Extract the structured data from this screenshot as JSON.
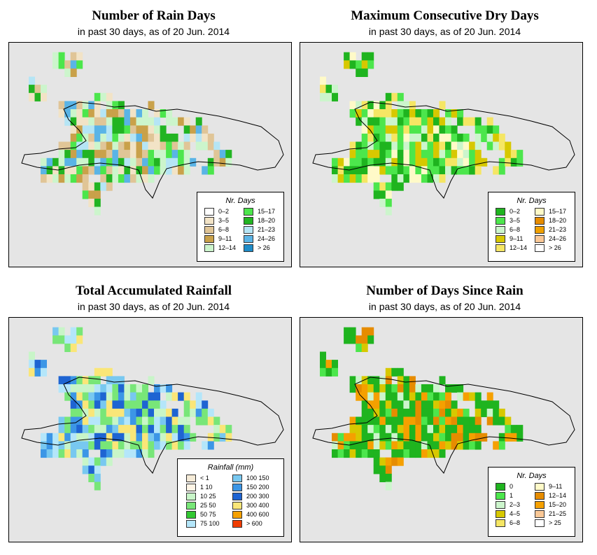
{
  "panels": [
    {
      "id": "rain-days",
      "title": "Number of Rain Days",
      "subtitle": "in past 30 days, as of  20 Jun. 2014",
      "legend": {
        "title": "Nr. Days",
        "items": [
          {
            "label": "0–2",
            "color": "#ffffff"
          },
          {
            "label": "3–5",
            "color": "#f2e3c6"
          },
          {
            "label": "6–8",
            "color": "#e0c597"
          },
          {
            "label": "9–11",
            "color": "#c9a14a"
          },
          {
            "label": "12–14",
            "color": "#ccf5cc"
          },
          {
            "label": "15–17",
            "color": "#4ce64c"
          },
          {
            "label": "18–20",
            "color": "#22b422"
          },
          {
            "label": "21–23",
            "color": "#b5e5f5"
          },
          {
            "label": "24–26",
            "color": "#5ab4e6"
          },
          {
            "label": "> 26",
            "color": "#1e8cc8"
          }
        ]
      }
    },
    {
      "id": "dry-days",
      "title": "Maximum Consecutive Dry Days",
      "subtitle": "in past 30 days, as of  20 Jun. 2014",
      "legend": {
        "title": "Nr. Days",
        "items": [
          {
            "label": "0–2",
            "color": "#1fb41f"
          },
          {
            "label": "3–5",
            "color": "#4ce64c"
          },
          {
            "label": "6–8",
            "color": "#ccf5cc"
          },
          {
            "label": "9–11",
            "color": "#d7c800"
          },
          {
            "label": "12–14",
            "color": "#f5e664"
          },
          {
            "label": "15–17",
            "color": "#fffac8"
          },
          {
            "label": "18–20",
            "color": "#e68c00"
          },
          {
            "label": "21–23",
            "color": "#f0a000"
          },
          {
            "label": "24–26",
            "color": "#fac896"
          },
          {
            "label": "> 26",
            "color": "#ffffff"
          }
        ]
      }
    },
    {
      "id": "rainfall",
      "title": "Total Accumulated Rainfall",
      "subtitle": "in past 30 days, as of  20 Jun. 2014",
      "legend": {
        "title": "Rainfall (mm)",
        "items": [
          {
            "label": "< 1",
            "color": "#f5ebd7"
          },
          {
            "label": "1  10",
            "color": "#fff5e6"
          },
          {
            "label": "10  25",
            "color": "#c8f5c8"
          },
          {
            "label": "25  50",
            "color": "#78e678"
          },
          {
            "label": "50  75",
            "color": "#32c832"
          },
          {
            "label": "75  100",
            "color": "#b4e6fa"
          },
          {
            "label": "100  150",
            "color": "#78c8f0"
          },
          {
            "label": "150  200",
            "color": "#3c96e6"
          },
          {
            "label": "200  300",
            "color": "#1e64d2"
          },
          {
            "label": "300  400",
            "color": "#fae678"
          },
          {
            "label": "400  600",
            "color": "#f5a000"
          },
          {
            "label": "> 600",
            "color": "#f03c00"
          }
        ]
      }
    },
    {
      "id": "since-rain",
      "title": "Number of Days Since Rain",
      "subtitle": "in past 30 days, as of  20 Jun. 2014",
      "legend": {
        "title": "Nr. Days",
        "items": [
          {
            "label": "0",
            "color": "#1fb41f"
          },
          {
            "label": "1",
            "color": "#4ce64c"
          },
          {
            "label": "2–3",
            "color": "#ccf5cc"
          },
          {
            "label": "4–5",
            "color": "#d7c800"
          },
          {
            "label": "6–8",
            "color": "#f5e664"
          },
          {
            "label": "9–11",
            "color": "#fffac8"
          },
          {
            "label": "12–14",
            "color": "#e68c00"
          },
          {
            "label": "15–20",
            "color": "#f5a000"
          },
          {
            "label": "21–25",
            "color": "#fac896"
          },
          {
            "label": "> 25",
            "color": "#ffffff"
          }
        ]
      }
    }
  ]
}
